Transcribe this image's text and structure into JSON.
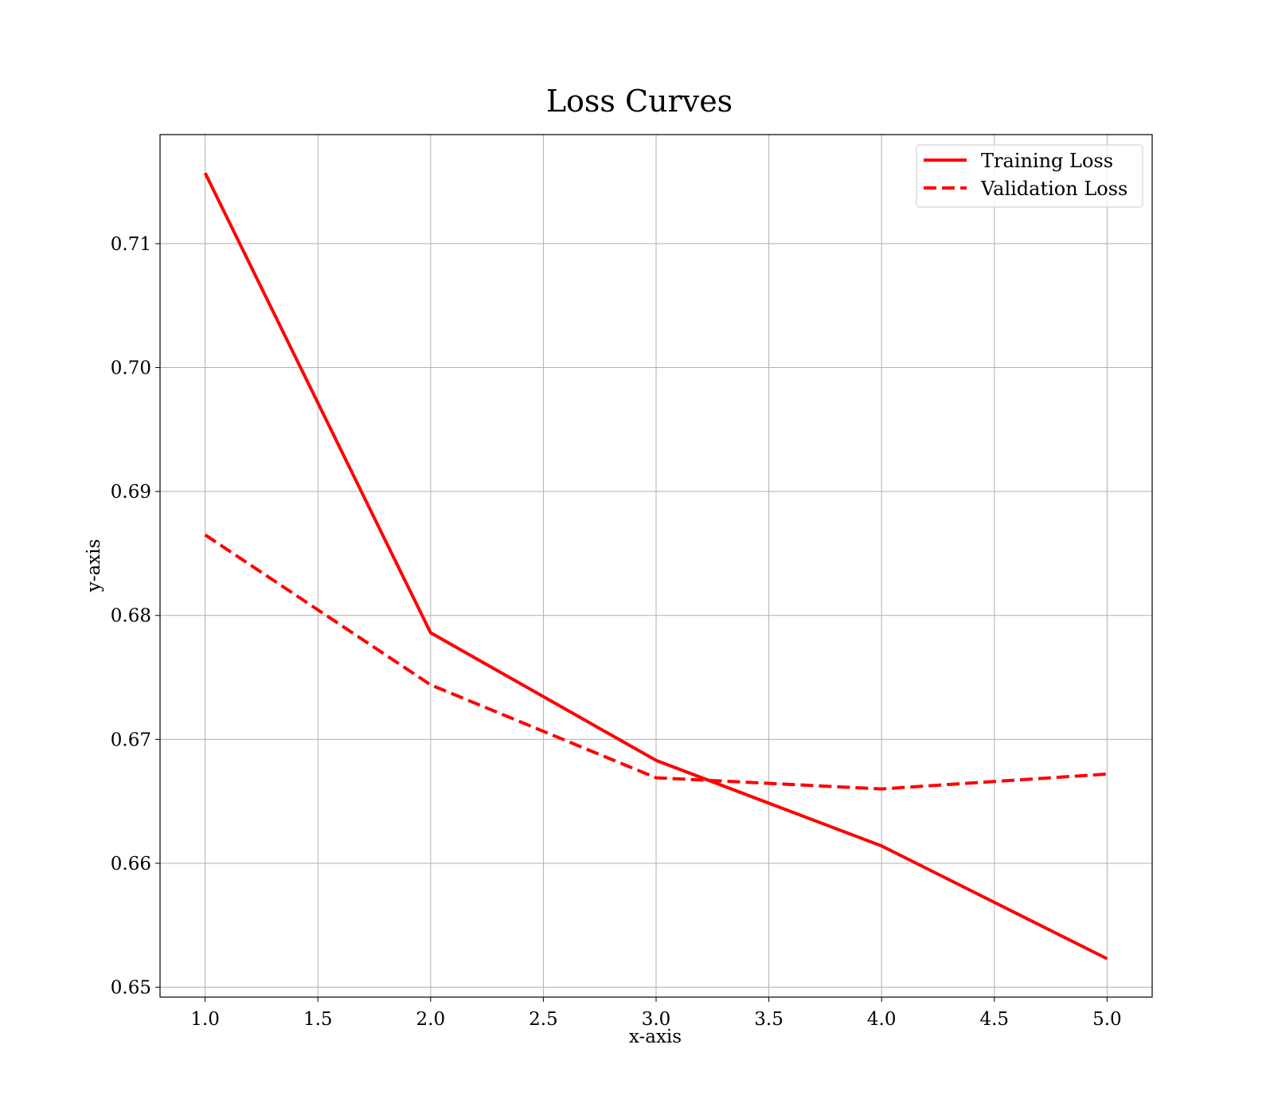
{
  "chart_data": {
    "type": "line",
    "title": "Loss Curves",
    "xlabel": "x-axis",
    "ylabel": "y-axis",
    "x": [
      1.0,
      2.0,
      3.0,
      4.0,
      5.0
    ],
    "xlim": [
      0.8,
      5.2
    ],
    "ylim": [
      0.6492,
      0.7188
    ],
    "xticks": [
      "1.0",
      "1.5",
      "2.0",
      "2.5",
      "3.0",
      "3.5",
      "4.0",
      "4.5",
      "5.0"
    ],
    "yticks": [
      "0.65",
      "0.66",
      "0.67",
      "0.68",
      "0.69",
      "0.70",
      "0.71"
    ],
    "grid": true,
    "legend_position": "top-right",
    "series": [
      {
        "name": "Training Loss",
        "values": [
          0.7157,
          0.6786,
          0.6683,
          0.6614,
          0.6523
        ],
        "color": "#ff0000",
        "style": "solid"
      },
      {
        "name": "Validation Loss",
        "values": [
          0.6865,
          0.6744,
          0.6669,
          0.666,
          0.6672
        ],
        "color": "#ff0000",
        "style": "dashed"
      }
    ]
  }
}
